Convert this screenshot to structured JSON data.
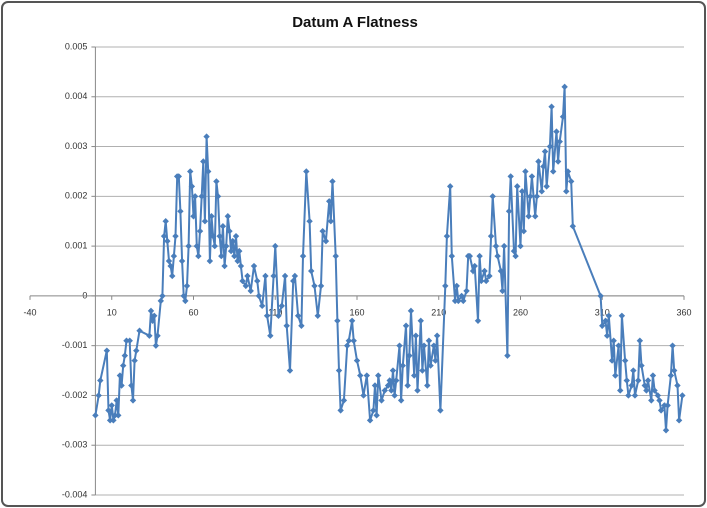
{
  "chart_data": {
    "type": "line",
    "title": "Datum A Flatness",
    "x": [
      0,
      2,
      3,
      7,
      8,
      9,
      10,
      11,
      12,
      13,
      14,
      15,
      16,
      17,
      18,
      19,
      21,
      22,
      23,
      24,
      25,
      27,
      33,
      34,
      35,
      36,
      37,
      38,
      40,
      41,
      42,
      43,
      44,
      45,
      46,
      47,
      48,
      49,
      50,
      51,
      52,
      53,
      54,
      55,
      56,
      57,
      58,
      59,
      60,
      61,
      62,
      63,
      64,
      65,
      66,
      67,
      68,
      69,
      70,
      71,
      72,
      73,
      74,
      75,
      76,
      77,
      78,
      79,
      80,
      81,
      82,
      83,
      84,
      85,
      86,
      87,
      88,
      89,
      90,
      92,
      93,
      95,
      97,
      99,
      100,
      102,
      104,
      105,
      107,
      109,
      110,
      112,
      114,
      116,
      117,
      119,
      121,
      122,
      124,
      126,
      127,
      129,
      131,
      132,
      134,
      136,
      138,
      139,
      141,
      143,
      144,
      145,
      147,
      148,
      149,
      150,
      152,
      154,
      155,
      157,
      158,
      160,
      162,
      164,
      166,
      168,
      170,
      171,
      172,
      173,
      175,
      177,
      179,
      180,
      181,
      182,
      183,
      184,
      186,
      187,
      188,
      190,
      191,
      192,
      193,
      195,
      196,
      197,
      199,
      200,
      201,
      203,
      204,
      205,
      207,
      208,
      209,
      211,
      214,
      215,
      217,
      218,
      220,
      221,
      222,
      224,
      225,
      227,
      228,
      229,
      231,
      232,
      234,
      235,
      236,
      238,
      239,
      241,
      242,
      243,
      245,
      246,
      248,
      249,
      250,
      252,
      253,
      254,
      256,
      257,
      258,
      260,
      261,
      262,
      263,
      265,
      266,
      267,
      269,
      270,
      271,
      273,
      274,
      275,
      276,
      278,
      279,
      280,
      282,
      283,
      284,
      286,
      287,
      288,
      289,
      291,
      292,
      309,
      310,
      312,
      313,
      314,
      316,
      317,
      318,
      320,
      321,
      322,
      324,
      325,
      326,
      328,
      329,
      330,
      332,
      333,
      334,
      336,
      337,
      338,
      340,
      341,
      342,
      344,
      345,
      346,
      348,
      349,
      350,
      352,
      353,
      354,
      356,
      357,
      359
    ],
    "values": [
      -0.0024,
      -0.002,
      -0.0017,
      -0.0011,
      -0.0023,
      -0.0025,
      -0.0022,
      -0.0025,
      -0.0024,
      -0.0021,
      -0.0024,
      -0.0016,
      -0.0018,
      -0.0014,
      -0.0012,
      -0.0009,
      -0.0009,
      -0.0018,
      -0.0021,
      -0.0013,
      -0.0011,
      -0.0007,
      -0.0008,
      -0.0003,
      -0.0005,
      -0.0004,
      -0.001,
      -0.0008,
      -0.0001,
      0,
      0.0012,
      0.0015,
      0.0011,
      0.0007,
      0.0006,
      0.0004,
      0.0008,
      0.0012,
      0.0024,
      0.0024,
      0.0017,
      0.0007,
      0,
      -0.0001,
      0.0002,
      0.001,
      0.0025,
      0.0022,
      0.0016,
      0.002,
      0.001,
      0.0008,
      0.0013,
      0.002,
      0.0027,
      0.0015,
      0.0032,
      0.0025,
      0.0007,
      0.0016,
      0.0012,
      0.001,
      0.0023,
      0.002,
      0.0012,
      0.0008,
      0.0014,
      0.0006,
      0.001,
      0.0016,
      0.0013,
      0.0009,
      0.0011,
      0.0008,
      0.0012,
      0.0007,
      0.0009,
      0.0006,
      0.0003,
      0.0002,
      0.0004,
      0.0001,
      0.0006,
      0.0003,
      0,
      -0.0002,
      0.0004,
      -0.0004,
      -0.0008,
      0.0004,
      0.001,
      -0.0004,
      -0.0002,
      0.0004,
      -0.0006,
      -0.0015,
      0.0003,
      0.0004,
      -0.0004,
      -0.0006,
      0.0008,
      0.0025,
      0.0015,
      0.0005,
      0.0002,
      -0.0004,
      0.0002,
      0.0013,
      0.0011,
      0.0019,
      0.0015,
      0.0023,
      0.0008,
      -0.0005,
      -0.0015,
      -0.0023,
      -0.0021,
      -0.001,
      -0.0009,
      -0.0005,
      -0.0009,
      -0.0013,
      -0.0016,
      -0.002,
      -0.0016,
      -0.0025,
      -0.0023,
      -0.0018,
      -0.0024,
      -0.0016,
      -0.0021,
      -0.0019,
      -0.0018,
      -0.0017,
      -0.0019,
      -0.0015,
      -0.002,
      -0.0017,
      -0.001,
      -0.0021,
      -0.0014,
      -0.0006,
      -0.0018,
      -0.0012,
      -0.0003,
      -0.0016,
      -0.0008,
      -0.0019,
      -0.0005,
      -0.0015,
      -0.001,
      -0.0018,
      -0.0009,
      -0.0014,
      -0.001,
      -0.0013,
      -0.0008,
      -0.0023,
      0.0002,
      0.0012,
      0.0022,
      0.0008,
      -0.0001,
      0.0002,
      -0.0001,
      0,
      -0.0001,
      0.0001,
      0.0008,
      0.0008,
      0.0005,
      0.0006,
      -0.0005,
      0.0008,
      0.0003,
      0.0005,
      0.0003,
      0.0004,
      0.0012,
      0.002,
      0.001,
      0.0008,
      0.0005,
      0.0001,
      0.001,
      -0.0012,
      0.0017,
      0.0024,
      0.0009,
      0.0008,
      0.0022,
      0.001,
      0.0021,
      0.0013,
      0.0025,
      0.0016,
      0.002,
      0.0024,
      0.0016,
      0.002,
      0.0027,
      0.0021,
      0.0026,
      0.0029,
      0.0022,
      0.003,
      0.0038,
      0.0025,
      0.0033,
      0.0027,
      0.0031,
      0.0036,
      0.0042,
      0.0021,
      0.0025,
      0.0023,
      0.0014,
      0,
      -0.0006,
      -0.0005,
      -0.0008,
      -0.0004,
      -0.0013,
      -0.0009,
      -0.0016,
      -0.001,
      -0.0019,
      -0.0004,
      -0.0013,
      -0.0017,
      -0.002,
      -0.0018,
      -0.0015,
      -0.002,
      -0.0017,
      -0.0009,
      -0.0014,
      -0.0018,
      -0.0019,
      -0.0017,
      -0.0021,
      -0.0016,
      -0.0019,
      -0.002,
      -0.0021,
      -0.0023,
      -0.0022,
      -0.0027,
      -0.0022,
      -0.0016,
      -0.001,
      -0.0015,
      -0.0018,
      -0.0025,
      -0.002
    ],
    "color": "#4a7ebb",
    "xlim": [
      -40,
      360
    ],
    "xticks": [
      -40,
      10,
      60,
      110,
      160,
      210,
      260,
      310,
      360
    ],
    "ylim": [
      -0.004,
      0.005
    ],
    "yticks": [
      -0.004,
      -0.003,
      -0.002,
      -0.001,
      0,
      0.001,
      0.002,
      0.003,
      0.004,
      0.005
    ],
    "grid": true
  }
}
